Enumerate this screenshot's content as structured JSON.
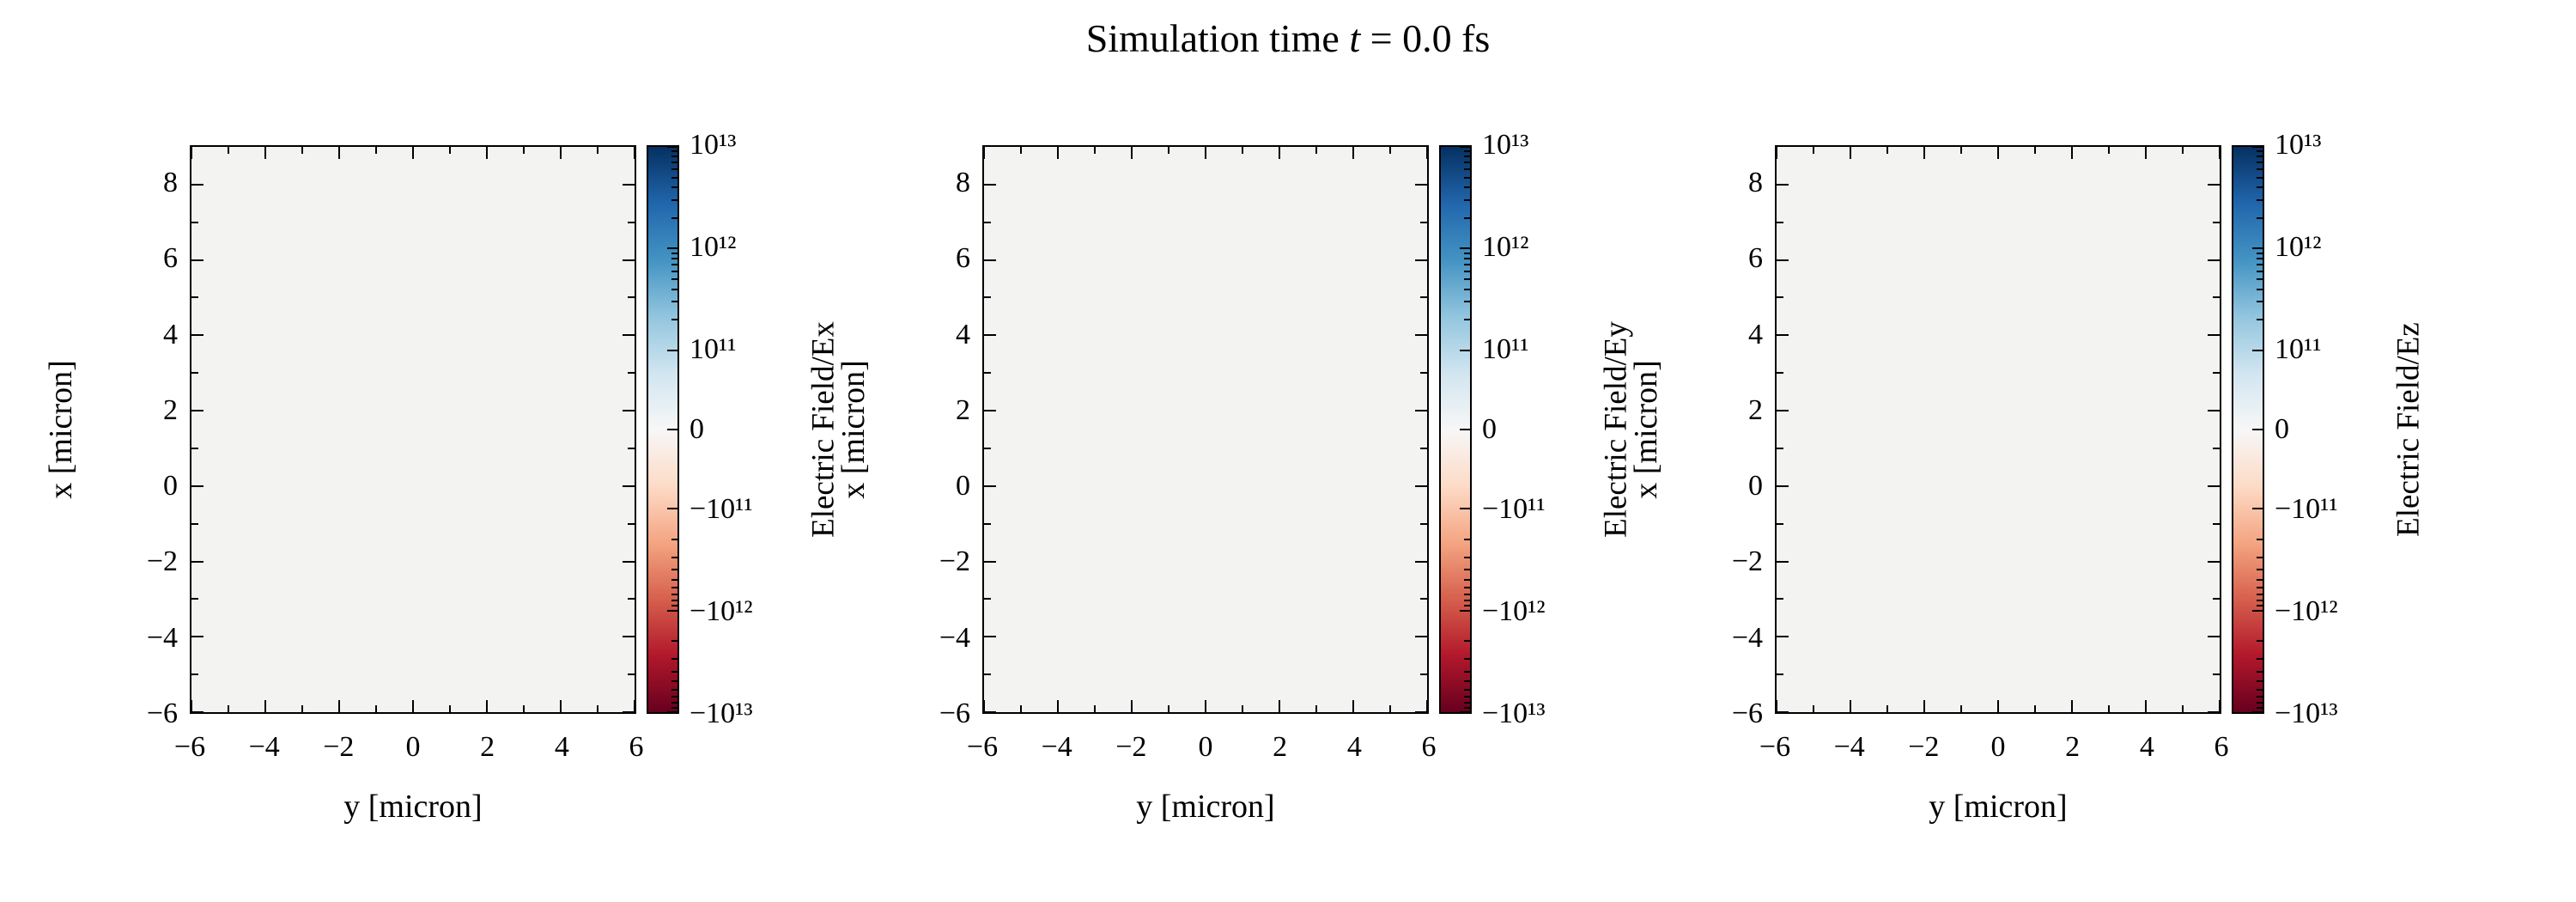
{
  "title": {
    "prefix": "Simulation time ",
    "var": "t",
    "suffix": " = 0.0 fs"
  },
  "axes": {
    "xlabel": "y [micron]",
    "ylabel": "x [micron]",
    "x_ticks": [
      {
        "label": "−6",
        "pos": 0
      },
      {
        "label": "−4",
        "pos": 16.667
      },
      {
        "label": "−2",
        "pos": 33.333
      },
      {
        "label": "0",
        "pos": 50
      },
      {
        "label": "2",
        "pos": 66.667
      },
      {
        "label": "4",
        "pos": 83.333
      },
      {
        "label": "6",
        "pos": 100
      }
    ],
    "y_ticks": [
      {
        "label": "8",
        "pos": 6.667
      },
      {
        "label": "6",
        "pos": 20
      },
      {
        "label": "4",
        "pos": 33.333
      },
      {
        "label": "2",
        "pos": 46.667
      },
      {
        "label": "0",
        "pos": 60
      },
      {
        "label": "−2",
        "pos": 73.333
      },
      {
        "label": "−4",
        "pos": 86.667
      },
      {
        "label": "−6",
        "pos": 100
      }
    ],
    "x_minor_ticks": [
      {
        "pos": 8.333
      },
      {
        "pos": 25
      },
      {
        "pos": 41.667
      },
      {
        "pos": 58.333
      },
      {
        "pos": 75
      },
      {
        "pos": 91.667
      }
    ],
    "y_minor_ticks": [
      {
        "pos": 13.333
      },
      {
        "pos": 26.667
      },
      {
        "pos": 40
      },
      {
        "pos": 53.333
      },
      {
        "pos": 66.667
      },
      {
        "pos": 80
      },
      {
        "pos": 93.333
      }
    ]
  },
  "colorbar": {
    "scale": "symlog",
    "ticks": [
      {
        "label": "10¹³",
        "pos": 0
      },
      {
        "label": "10¹²",
        "pos": 18
      },
      {
        "label": "10¹¹",
        "pos": 36
      },
      {
        "label": "0",
        "pos": 50
      },
      {
        "label": "−10¹¹",
        "pos": 64
      },
      {
        "label": "−10¹²",
        "pos": 82
      },
      {
        "label": "−10¹³",
        "pos": 100
      }
    ],
    "minor_ticks": [
      {
        "pos": 0.83
      },
      {
        "pos": 1.74
      },
      {
        "pos": 2.79
      },
      {
        "pos": 4.0
      },
      {
        "pos": 5.42
      },
      {
        "pos": 7.16
      },
      {
        "pos": 9.42
      },
      {
        "pos": 12.58
      },
      {
        "pos": 18.83
      },
      {
        "pos": 19.74
      },
      {
        "pos": 20.79
      },
      {
        "pos": 22.0
      },
      {
        "pos": 23.42
      },
      {
        "pos": 25.16
      },
      {
        "pos": 27.42
      },
      {
        "pos": 30.58
      },
      {
        "pos": 69.42
      },
      {
        "pos": 72.58
      },
      {
        "pos": 74.84
      },
      {
        "pos": 76.58
      },
      {
        "pos": 78.0
      },
      {
        "pos": 79.21
      },
      {
        "pos": 80.26
      },
      {
        "pos": 81.17
      },
      {
        "pos": 87.42
      },
      {
        "pos": 90.58
      },
      {
        "pos": 92.84
      },
      {
        "pos": 94.58
      },
      {
        "pos": 96.0
      },
      {
        "pos": 97.21
      },
      {
        "pos": 98.26
      },
      {
        "pos": 99.17
      }
    ],
    "colormap_colors": [
      "#053061",
      "#2166ac",
      "#4393c3",
      "#92c5de",
      "#d1e5f0",
      "#f7f7f7",
      "#fddbc7",
      "#f4a582",
      "#d6604d",
      "#b2182b",
      "#67001f"
    ]
  },
  "panels": [
    {
      "cbar_label": "Electric Field/Ex"
    },
    {
      "cbar_label": "Electric Field/Ey"
    },
    {
      "cbar_label": "Electric Field/Ez"
    }
  ],
  "field_color": "#f3f3f1",
  "chart_data": [
    {
      "type": "heatmap",
      "component": "Ex",
      "title": "Simulation time t = 0.0 fs",
      "xlabel": "y [micron]",
      "ylabel": "x [micron]",
      "xlim": [
        -6,
        6
      ],
      "ylim": [
        -6,
        9
      ],
      "x_tick_values": [
        -6,
        -4,
        -2,
        0,
        2,
        4,
        6
      ],
      "y_tick_values": [
        8,
        6,
        4,
        2,
        0,
        -2,
        -4,
        -6
      ],
      "colormap": "RdBu (blue = positive, white = zero, red = negative)",
      "colorbar_label": "Electric Field/Ex",
      "colorbar_scale": "symlog",
      "colorbar_min": -10000000000000.0,
      "colorbar_max": 10000000000000.0,
      "colorbar_tick_values": [
        10000000000000.0,
        1000000000000.0,
        100000000000.0,
        0,
        -100000000000.0,
        -1000000000000.0,
        -10000000000000.0
      ],
      "values": "uniform 0 over the whole domain (no field present at t = 0.0 fs)"
    },
    {
      "type": "heatmap",
      "component": "Ey",
      "title": "Simulation time t = 0.0 fs",
      "xlabel": "y [micron]",
      "ylabel": "x [micron]",
      "xlim": [
        -6,
        6
      ],
      "ylim": [
        -6,
        9
      ],
      "x_tick_values": [
        -6,
        -4,
        -2,
        0,
        2,
        4,
        6
      ],
      "y_tick_values": [
        8,
        6,
        4,
        2,
        0,
        -2,
        -4,
        -6
      ],
      "colormap": "RdBu (blue = positive, white = zero, red = negative)",
      "colorbar_label": "Electric Field/Ey",
      "colorbar_scale": "symlog",
      "colorbar_min": -10000000000000.0,
      "colorbar_max": 10000000000000.0,
      "colorbar_tick_values": [
        10000000000000.0,
        1000000000000.0,
        100000000000.0,
        0,
        -100000000000.0,
        -1000000000000.0,
        -10000000000000.0
      ],
      "values": "uniform 0 over the whole domain (no field present at t = 0.0 fs)"
    },
    {
      "type": "heatmap",
      "component": "Ez",
      "title": "Simulation time t = 0.0 fs",
      "xlabel": "y [micron]",
      "ylabel": "x [micron]",
      "xlim": [
        -6,
        6
      ],
      "ylim": [
        -6,
        9
      ],
      "x_tick_values": [
        -6,
        -4,
        -2,
        0,
        2,
        4,
        6
      ],
      "y_tick_values": [
        8,
        6,
        4,
        2,
        0,
        -2,
        -4,
        -6
      ],
      "colormap": "RdBu (blue = positive, white = zero, red = negative)",
      "colorbar_label": "Electric Field/Ez",
      "colorbar_scale": "symlog",
      "colorbar_min": -10000000000000.0,
      "colorbar_max": 10000000000000.0,
      "colorbar_tick_values": [
        10000000000000.0,
        1000000000000.0,
        100000000000.0,
        0,
        -100000000000.0,
        -1000000000000.0,
        -10000000000000.0
      ],
      "values": "uniform 0 over the whole domain (no field present at t = 0.0 fs)"
    }
  ]
}
